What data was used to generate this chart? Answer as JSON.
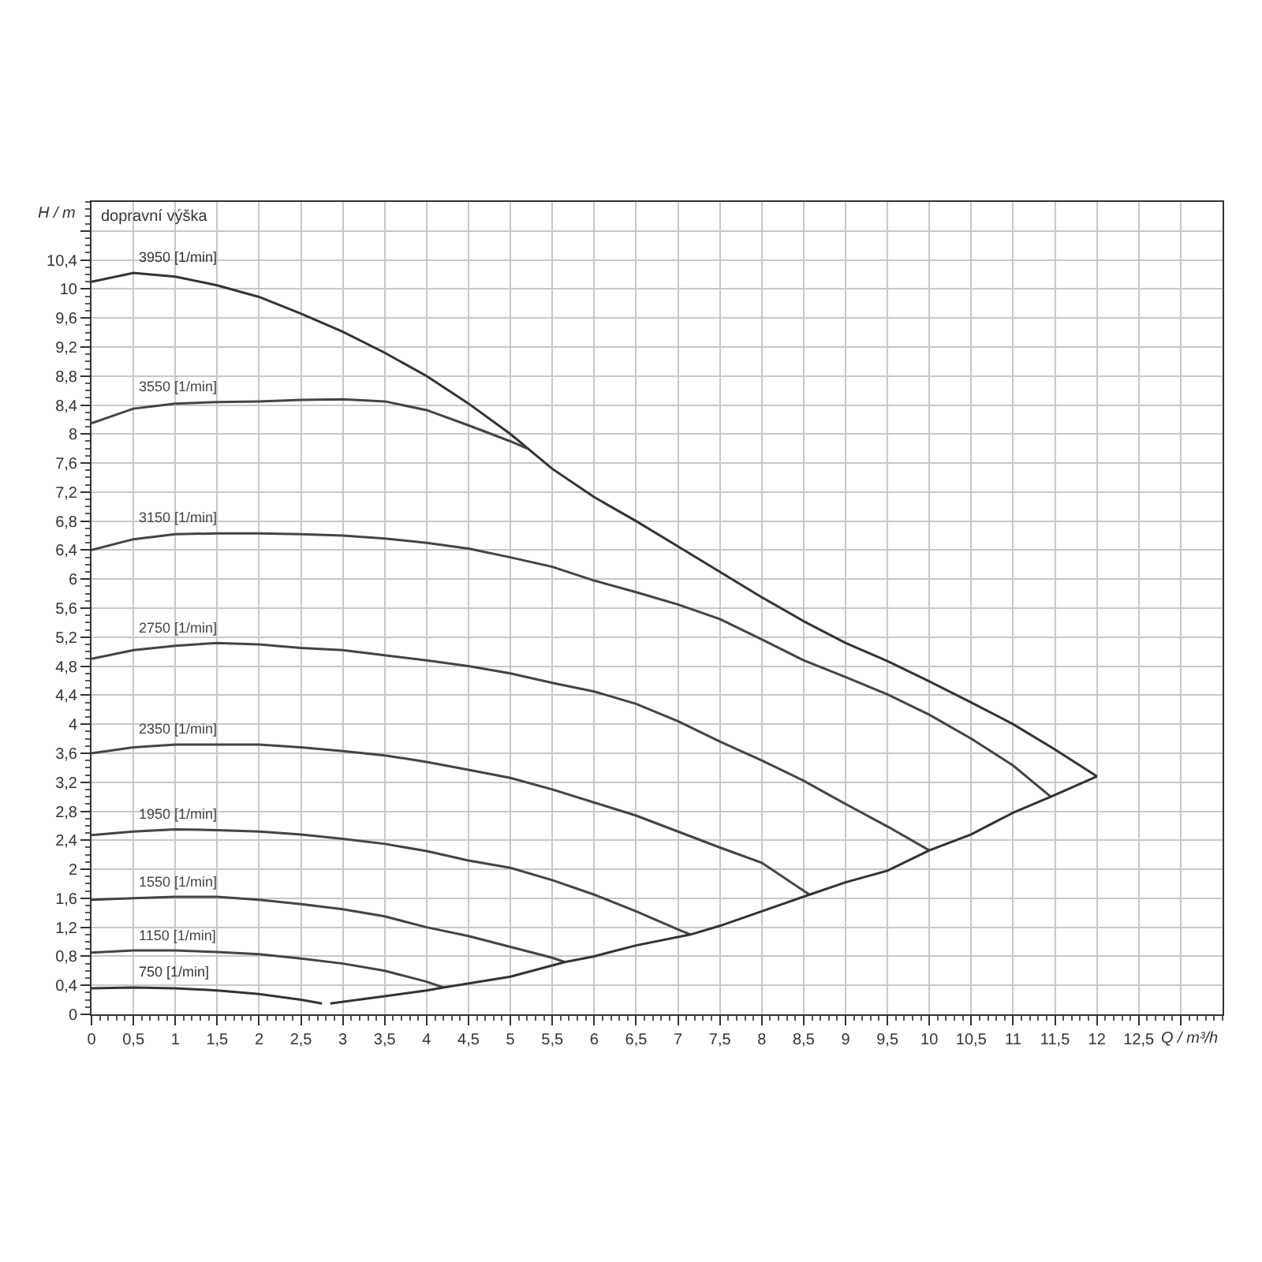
{
  "chart_data": {
    "type": "line",
    "xlabel": "Q / m³/h",
    "ylabel": "H / m",
    "annotations": [
      "dopravní výška"
    ],
    "xlim": [
      0,
      13.5
    ],
    "ylim": [
      0,
      11.2
    ],
    "xticks": [
      0,
      {
        "value": 0.5,
        "label": "0,5"
      },
      1,
      {
        "value": 1.5,
        "label": "1,5"
      },
      2,
      {
        "value": 2.5,
        "label": "2,5"
      },
      3,
      {
        "value": 3.5,
        "label": "3,5"
      },
      4,
      {
        "value": 4.5,
        "label": "4,5"
      },
      5,
      {
        "value": 5.5,
        "label": "5,5"
      },
      6,
      {
        "value": 6.5,
        "label": "6,5"
      },
      7,
      {
        "value": 7.5,
        "label": "7,5"
      },
      8,
      {
        "value": 8.5,
        "label": "8,5"
      },
      9,
      {
        "value": 9.5,
        "label": "9,5"
      },
      10,
      {
        "value": 10.5,
        "label": "10,5"
      },
      11,
      {
        "value": 11.5,
        "label": "11,5"
      },
      12,
      {
        "value": 12.5,
        "label": "12,5"
      },
      {
        "value": 13,
        "label": null
      }
    ],
    "yticks": [
      0,
      {
        "value": 0.4,
        "label": "0,4"
      },
      {
        "value": 0.8,
        "label": "0,8"
      },
      {
        "value": 1.2,
        "label": "1,2"
      },
      {
        "value": 1.6,
        "label": "1,6"
      },
      2,
      {
        "value": 2.4,
        "label": "2,4"
      },
      {
        "value": 2.8,
        "label": "2,8"
      },
      {
        "value": 3.2,
        "label": "3,2"
      },
      {
        "value": 3.6,
        "label": "3,6"
      },
      4,
      {
        "value": 4.4,
        "label": "4,4"
      },
      {
        "value": 4.8,
        "label": "4,8"
      },
      {
        "value": 5.2,
        "label": "5,2"
      },
      {
        "value": 5.6,
        "label": "5,6"
      },
      6,
      {
        "value": 6.4,
        "label": "6,4"
      },
      {
        "value": 6.8,
        "label": "6,8"
      },
      {
        "value": 7.2,
        "label": "7,2"
      },
      {
        "value": 7.6,
        "label": "7,6"
      },
      8,
      {
        "value": 8.4,
        "label": "8,4"
      },
      {
        "value": 8.8,
        "label": "8,8"
      },
      {
        "value": 9.2,
        "label": "9,2"
      },
      {
        "value": 9.6,
        "label": "9,6"
      },
      10,
      {
        "value": 10.4,
        "label": "10,4"
      },
      {
        "value": 10.8,
        "label": null
      }
    ],
    "grid": true,
    "legend": false,
    "marker": "none",
    "line_style": "solid",
    "series": [
      {
        "name": "3950 [1/min]",
        "color": "#333333",
        "x": [
          0,
          0.5,
          1,
          1.5,
          2,
          2.5,
          3,
          3.5,
          4,
          4.5,
          5,
          5.5,
          6,
          6.5,
          7,
          7.5,
          8,
          8.5,
          9,
          9.5,
          10,
          10.5,
          11,
          11.5,
          12
        ],
        "values": [
          10.1,
          10.22,
          10.17,
          10.05,
          9.89,
          9.66,
          9.41,
          9.12,
          8.8,
          8.42,
          8.0,
          7.52,
          7.13,
          6.8,
          6.45,
          6.1,
          5.75,
          5.42,
          5.12,
          4.87,
          4.59,
          4.3,
          4.0,
          3.65,
          3.28
        ]
      },
      {
        "name": "3550 [1/min]",
        "color": "#444444",
        "x": [
          0,
          0.5,
          1,
          1.5,
          2,
          2.5,
          3,
          3.5,
          4,
          4.5,
          5,
          5.2
        ],
        "values": [
          8.15,
          8.35,
          8.42,
          8.44,
          8.45,
          8.47,
          8.48,
          8.45,
          8.33,
          8.12,
          7.9,
          7.8
        ]
      },
      {
        "name": "3150 [1/min]",
        "color": "#444444",
        "x": [
          0,
          0.5,
          1,
          1.5,
          2,
          2.5,
          3,
          3.5,
          4,
          4.5,
          5,
          5.5,
          6,
          6.5,
          7,
          7.5,
          8,
          8.5,
          9,
          9.5,
          10,
          10.5,
          11,
          11.45
        ],
        "values": [
          6.4,
          6.55,
          6.62,
          6.63,
          6.63,
          6.62,
          6.6,
          6.56,
          6.5,
          6.42,
          6.3,
          6.17,
          5.98,
          5.82,
          5.65,
          5.45,
          5.17,
          4.88,
          4.65,
          4.41,
          4.13,
          3.8,
          3.43,
          3.0
        ]
      },
      {
        "name": "2750 [1/min]",
        "color": "#444444",
        "x": [
          0,
          0.5,
          1,
          1.5,
          2,
          2.5,
          3,
          3.5,
          4,
          4.5,
          5,
          5.5,
          6,
          6.5,
          7,
          7.5,
          8,
          8.5,
          9,
          9.5,
          10
        ],
        "values": [
          4.9,
          5.02,
          5.08,
          5.12,
          5.1,
          5.05,
          5.02,
          4.95,
          4.88,
          4.8,
          4.7,
          4.57,
          4.45,
          4.28,
          4.04,
          3.76,
          3.5,
          3.22,
          2.9,
          2.59,
          2.26
        ]
      },
      {
        "name": "2350 [1/min]",
        "color": "#444444",
        "x": [
          0,
          0.5,
          1,
          1.5,
          2,
          2.5,
          3,
          3.5,
          4,
          4.5,
          5,
          5.5,
          6,
          6.5,
          7,
          7.5,
          8,
          8.57
        ],
        "values": [
          3.6,
          3.68,
          3.72,
          3.72,
          3.72,
          3.68,
          3.63,
          3.57,
          3.48,
          3.37,
          3.26,
          3.1,
          2.92,
          2.74,
          2.52,
          2.3,
          2.09,
          1.65
        ]
      },
      {
        "name": "1950 [1/min]",
        "color": "#444444",
        "x": [
          0,
          0.5,
          1,
          1.5,
          2,
          2.5,
          3,
          3.5,
          4,
          4.5,
          5,
          5.5,
          6,
          6.5,
          7,
          7.15
        ],
        "values": [
          2.47,
          2.52,
          2.55,
          2.54,
          2.52,
          2.48,
          2.42,
          2.35,
          2.25,
          2.12,
          2.02,
          1.85,
          1.65,
          1.42,
          1.17,
          1.1
        ]
      },
      {
        "name": "1550 [1/min]",
        "color": "#444444",
        "x": [
          0,
          0.5,
          1,
          1.5,
          2,
          2.5,
          3,
          3.5,
          4,
          4.5,
          5,
          5.5,
          5.65
        ],
        "values": [
          1.58,
          1.6,
          1.62,
          1.62,
          1.58,
          1.52,
          1.45,
          1.35,
          1.2,
          1.08,
          0.93,
          0.78,
          0.72
        ]
      },
      {
        "name": "1150 [1/min]",
        "color": "#444444",
        "x": [
          0,
          0.5,
          1,
          1.5,
          2,
          2.5,
          3,
          3.5,
          4,
          4.2
        ],
        "values": [
          0.85,
          0.88,
          0.88,
          0.86,
          0.83,
          0.77,
          0.7,
          0.6,
          0.45,
          0.37
        ]
      },
      {
        "name": "750 [1/min]",
        "color": "#333333",
        "x": [
          0,
          0.5,
          1,
          1.5,
          2,
          2.5,
          2.75
        ],
        "values": [
          0.36,
          0.37,
          0.36,
          0.33,
          0.28,
          0.2,
          0.15
        ]
      },
      {
        "color": "#333333",
        "x": [
          2.85,
          3.5,
          4,
          4.2,
          5,
          5.65,
          6,
          6.5,
          7.15,
          7.5,
          8,
          8.57,
          9,
          9.5,
          10,
          10.5,
          11,
          11.45,
          12
        ],
        "values": [
          0.15,
          0.25,
          0.33,
          0.37,
          0.52,
          0.72,
          0.8,
          0.95,
          1.1,
          1.22,
          1.42,
          1.65,
          1.82,
          1.98,
          2.26,
          2.48,
          2.78,
          3.0,
          3.28
        ]
      }
    ]
  }
}
